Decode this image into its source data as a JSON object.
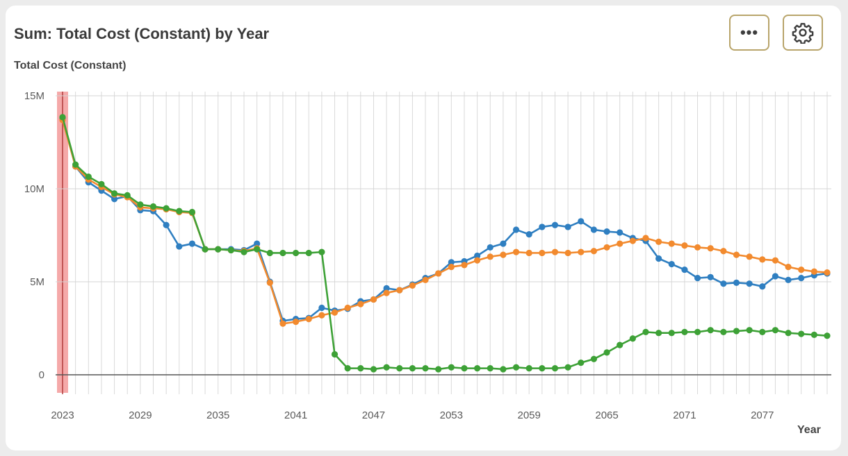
{
  "header": {
    "title": "Sum: Total Cost (Constant) by Year",
    "more_label": "•••",
    "more_icon": "ellipsis-icon",
    "settings_icon": "gear-icon"
  },
  "chart_data": {
    "type": "line",
    "title": "Sum: Total Cost (Constant) by Year",
    "xlabel": "Year",
    "ylabel": "Total Cost (Constant)",
    "ylim": [
      0,
      15000000
    ],
    "xlim": [
      2023,
      2082
    ],
    "yticks": [
      0,
      5000000,
      10000000,
      15000000
    ],
    "ytick_labels": [
      "0",
      "5M",
      "10M",
      "15M"
    ],
    "xticks": [
      2023,
      2029,
      2035,
      2041,
      2047,
      2053,
      2059,
      2065,
      2071,
      2077
    ],
    "xtick_labels": [
      "2023",
      "2029",
      "2035",
      "2041",
      "2047",
      "2053",
      "2059",
      "2065",
      "2071",
      "2077"
    ],
    "grid": "vertical",
    "highlight_year": 2023,
    "highlight_color": "#f4a0a0",
    "x": [
      2023,
      2024,
      2025,
      2026,
      2027,
      2028,
      2029,
      2030,
      2031,
      2032,
      2033,
      2034,
      2035,
      2036,
      2037,
      2038,
      2039,
      2040,
      2041,
      2042,
      2043,
      2044,
      2045,
      2046,
      2047,
      2048,
      2049,
      2050,
      2051,
      2052,
      2053,
      2054,
      2055,
      2056,
      2057,
      2058,
      2059,
      2060,
      2061,
      2062,
      2063,
      2064,
      2065,
      2066,
      2067,
      2068,
      2069,
      2070,
      2071,
      2072,
      2073,
      2074,
      2075,
      2076,
      2077,
      2078,
      2079,
      2080,
      2081,
      2082
    ],
    "series": [
      {
        "color": "#2f7fc1",
        "values": [
          13.8,
          11.2,
          10.35,
          9.9,
          9.45,
          9.6,
          8.85,
          8.8,
          8.05,
          6.9,
          7.05,
          6.75,
          6.75,
          6.75,
          6.7,
          7.05,
          5.0,
          2.9,
          3.0,
          3.05,
          3.6,
          3.45,
          3.55,
          3.95,
          4.05,
          4.65,
          4.55,
          4.85,
          5.2,
          5.45,
          6.05,
          6.1,
          6.4,
          6.85,
          7.05,
          7.8,
          7.55,
          7.95,
          8.05,
          7.95,
          8.25,
          7.8,
          7.7,
          7.65,
          7.35,
          7.2,
          6.25,
          5.95,
          5.65,
          5.2,
          5.25,
          4.9,
          4.95,
          4.9,
          4.75,
          5.3,
          5.1,
          5.2,
          5.35,
          5.45
        ]
      },
      {
        "color": "#f28a2e",
        "values": [
          13.7,
          11.2,
          10.5,
          10.1,
          9.7,
          9.55,
          9.0,
          8.95,
          8.9,
          8.75,
          8.7,
          6.75,
          6.75,
          6.7,
          6.65,
          6.8,
          4.95,
          2.75,
          2.85,
          3.0,
          3.2,
          3.35,
          3.6,
          3.8,
          4.05,
          4.4,
          4.55,
          4.8,
          5.1,
          5.45,
          5.8,
          5.9,
          6.15,
          6.35,
          6.45,
          6.6,
          6.55,
          6.55,
          6.6,
          6.55,
          6.6,
          6.65,
          6.85,
          7.05,
          7.2,
          7.35,
          7.15,
          7.05,
          6.95,
          6.85,
          6.8,
          6.65,
          6.45,
          6.35,
          6.2,
          6.15,
          5.8,
          5.65,
          5.55,
          5.5
        ]
      },
      {
        "color": "#3da136",
        "values": [
          13.85,
          11.3,
          10.65,
          10.25,
          9.75,
          9.65,
          9.15,
          9.05,
          8.95,
          8.8,
          8.75,
          6.75,
          6.75,
          6.7,
          6.6,
          6.75,
          6.55,
          6.55,
          6.55,
          6.55,
          6.6,
          1.1,
          0.35,
          0.35,
          0.3,
          0.4,
          0.35,
          0.35,
          0.35,
          0.3,
          0.4,
          0.35,
          0.35,
          0.35,
          0.3,
          0.4,
          0.35,
          0.35,
          0.35,
          0.4,
          0.65,
          0.85,
          1.2,
          1.6,
          1.95,
          2.3,
          2.25,
          2.25,
          2.3,
          2.3,
          2.4,
          2.3,
          2.35,
          2.4,
          2.3,
          2.4,
          2.25,
          2.2,
          2.15,
          2.1
        ]
      }
    ],
    "value_unit": "M"
  }
}
